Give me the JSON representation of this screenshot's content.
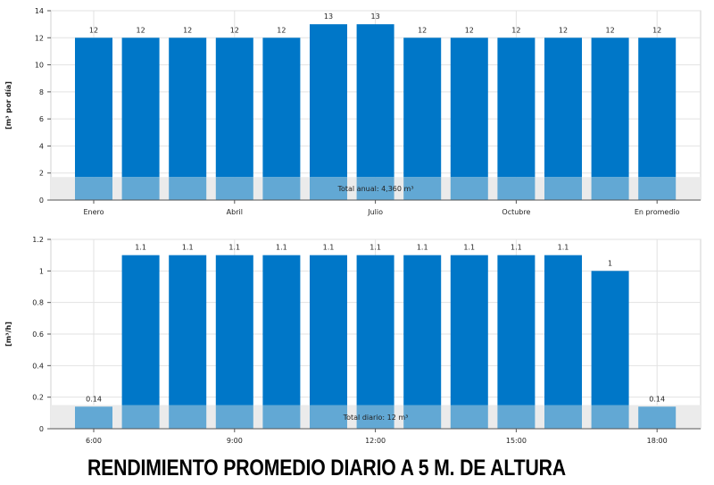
{
  "caption": "RENDIMIENTO PROMEDIO DIARIO A 5 M. DE ALTURA",
  "colors": {
    "bar": "#0077c8",
    "bar_low": "#62a8d4",
    "band": "#ebebeb",
    "grid": "#e2e2e2"
  },
  "chart_data": [
    {
      "type": "bar",
      "ylabel": "[m³ por día]",
      "ylim": [
        0,
        14
      ],
      "yticks": [
        0,
        2,
        4,
        6,
        8,
        10,
        12,
        14
      ],
      "categories": [
        "Enero",
        "",
        "",
        "Abril",
        "",
        "",
        "Julio",
        "",
        "",
        "Octubre",
        "",
        "",
        "En promedio"
      ],
      "values": [
        12,
        12,
        12,
        12,
        12,
        13,
        13,
        12,
        12,
        12,
        12,
        12,
        12
      ],
      "data_labels": [
        "12",
        "12",
        "12",
        "12",
        "12",
        "13",
        "13",
        "12",
        "12",
        "12",
        "12",
        "12",
        "12"
      ],
      "band_value": 1.7,
      "band_label": "Total anual: 4,360 m³",
      "grid": true
    },
    {
      "type": "bar",
      "ylabel": "[m³/h]",
      "ylim": [
        0,
        1.2
      ],
      "yticks": [
        0,
        0.2,
        0.4,
        0.6,
        0.8,
        1,
        1.2
      ],
      "ytick_labels": [
        "0",
        "0.2",
        "0.4",
        "0.6",
        "0.8",
        "1",
        "1.2"
      ],
      "categories": [
        "6:00",
        "",
        "",
        "9:00",
        "",
        "",
        "12:00",
        "",
        "",
        "15:00",
        "",
        "",
        "18:00"
      ],
      "values": [
        0.14,
        1.1,
        1.1,
        1.1,
        1.1,
        1.1,
        1.1,
        1.1,
        1.1,
        1.1,
        1.1,
        1.0,
        0.14
      ],
      "data_labels": [
        "0.14",
        "1.1",
        "1.1",
        "1.1",
        "1.1",
        "1.1",
        "1.1",
        "1.1",
        "1.1",
        "1.1",
        "1.1",
        "1",
        "0.14"
      ],
      "band_value": 0.15,
      "band_label": "Total diario: 12 m³",
      "grid": true
    }
  ]
}
